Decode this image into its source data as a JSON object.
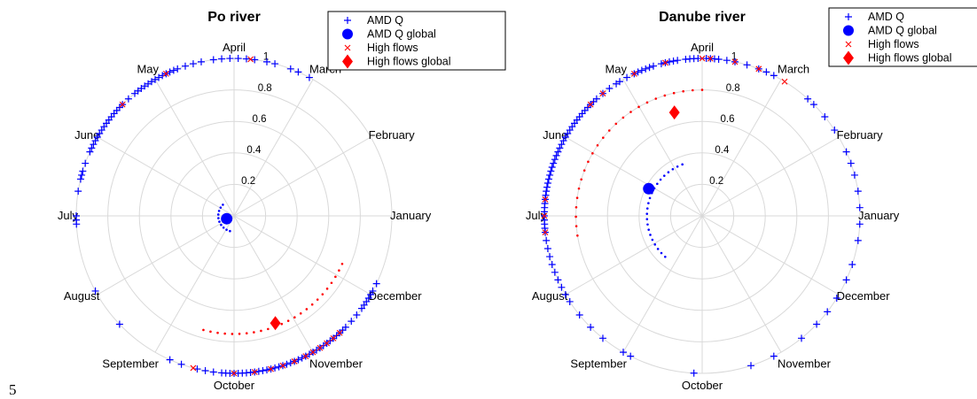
{
  "page_number": "5",
  "colors": {
    "amd": "#0000ff",
    "high": "#ff0000",
    "grid": "#d9d9d9"
  },
  "chart_data": [
    {
      "type": "scatter",
      "projection": "polar",
      "title": "Po river",
      "angular_labels": [
        "January",
        "February",
        "March",
        "April",
        "May",
        "June",
        "July",
        "August",
        "September",
        "October",
        "November",
        "December"
      ],
      "radial_ticks": [
        "0.2",
        "0.4",
        "0.6",
        "0.8",
        "1"
      ],
      "rlim": [
        0,
        1
      ],
      "legend": {
        "position": "top-right",
        "entries": [
          "AMD Q",
          "AMD Q global",
          "High flows",
          "High flows global"
        ]
      },
      "amd_q_months": [
        3.05,
        3.2,
        3.3,
        3.5,
        3.6,
        3.75,
        3.85,
        3.95,
        4.05,
        4.15,
        4.25,
        4.4,
        4.5,
        4.6,
        4.7,
        4.75,
        4.8,
        4.85,
        4.9,
        4.95,
        5.0,
        5.05,
        5.1,
        5.15,
        5.2,
        5.25,
        5.3,
        5.4,
        5.5,
        5.55,
        5.6,
        5.65,
        5.7,
        5.75,
        5.8,
        5.85,
        5.9,
        5.95,
        6.0,
        6.05,
        6.1,
        6.15,
        6.2,
        6.35,
        6.45,
        6.5,
        6.55,
        6.7,
        7.95,
        7.0,
        7.05,
        7.1,
        8.45,
        9.2,
        9.35,
        9.55,
        9.65,
        9.75,
        9.85,
        9.9,
        9.95,
        10.0,
        10.05,
        10.1,
        10.15,
        10.2,
        10.25,
        10.3,
        10.35,
        10.4,
        10.45,
        10.5,
        10.55,
        10.6,
        10.65,
        10.7,
        10.75,
        10.8,
        10.85,
        10.9,
        10.95,
        11.0,
        11.05,
        11.1,
        11.15,
        11.2,
        11.25,
        11.3,
        11.35,
        11.4,
        11.45,
        11.5,
        11.6,
        11.7,
        11.8,
        11.85,
        11.9,
        11.95,
        12.0,
        12.05,
        12.15
      ],
      "high_flows_months": [
        3.8,
        4.85,
        5.5,
        9.5,
        10.0,
        10.25,
        10.45,
        10.6,
        10.75,
        10.9,
        11.0,
        11.1,
        11.2,
        11.3,
        11.4
      ],
      "amd_q_global": {
        "month": 7.7,
        "r": 0.05
      },
      "high_flows_global": {
        "month": 10.7,
        "r": 0.73
      },
      "amd_q_circle_r": 0.1,
      "high_flows_circle_r": 0.75
    },
    {
      "type": "scatter",
      "projection": "polar",
      "title": "Danube river",
      "angular_labels": [
        "January",
        "February",
        "March",
        "April",
        "May",
        "June",
        "July",
        "August",
        "September",
        "October",
        "November",
        "December"
      ],
      "radial_ticks": [
        "0.2",
        "0.4",
        "0.6",
        "0.8",
        "1"
      ],
      "rlim": [
        0,
        1
      ],
      "legend": {
        "position": "top-right",
        "entries": [
          "AMD Q",
          "AMD Q global",
          "High flows",
          "High flows global"
        ]
      },
      "amd_q_months": [
        3.1,
        3.2,
        3.3,
        3.45,
        3.6,
        3.7,
        3.8,
        3.85,
        3.9,
        3.95,
        4.05,
        4.1,
        4.15,
        4.2,
        4.3,
        4.35,
        4.4,
        4.45,
        4.5,
        4.6,
        4.65,
        4.7,
        4.75,
        4.8,
        4.85,
        4.95,
        5.05,
        5.1,
        5.2,
        5.3,
        5.4,
        5.45,
        5.5,
        5.55,
        5.6,
        5.65,
        5.7,
        5.75,
        5.8,
        5.85,
        5.9,
        5.95,
        6.0,
        6.05,
        6.1,
        6.15,
        6.2,
        6.25,
        6.3,
        6.35,
        6.4,
        6.45,
        6.5,
        6.55,
        6.6,
        6.65,
        6.7,
        6.75,
        6.8,
        6.85,
        6.9,
        6.95,
        7.0,
        7.05,
        7.1,
        7.15,
        7.2,
        7.3,
        7.4,
        7.5,
        7.6,
        7.7,
        7.8,
        7.9,
        8.0,
        8.1,
        8.3,
        8.5,
        8.7,
        9.0,
        9.1,
        9.9,
        10.6,
        10.9,
        11.3,
        11.55,
        11.75,
        11.95,
        12.2,
        12.4,
        12.7,
        12.9,
        1.1,
        1.3,
        1.5,
        1.65,
        1.8,
        2.1,
        2.3,
        2.5,
        2.6
      ],
      "high_flows_months": [
        2.95,
        3.3,
        3.6,
        3.9,
        4.0,
        4.45,
        4.85,
        5.3,
        5.5,
        6.8,
        7.0,
        7.2
      ],
      "amd_q_global": {
        "month": 6.1,
        "r": 0.38
      },
      "high_flows_global": {
        "month": 4.5,
        "r": 0.68
      },
      "amd_q_circle_r": 0.35,
      "high_flows_circle_r": 0.8
    }
  ]
}
